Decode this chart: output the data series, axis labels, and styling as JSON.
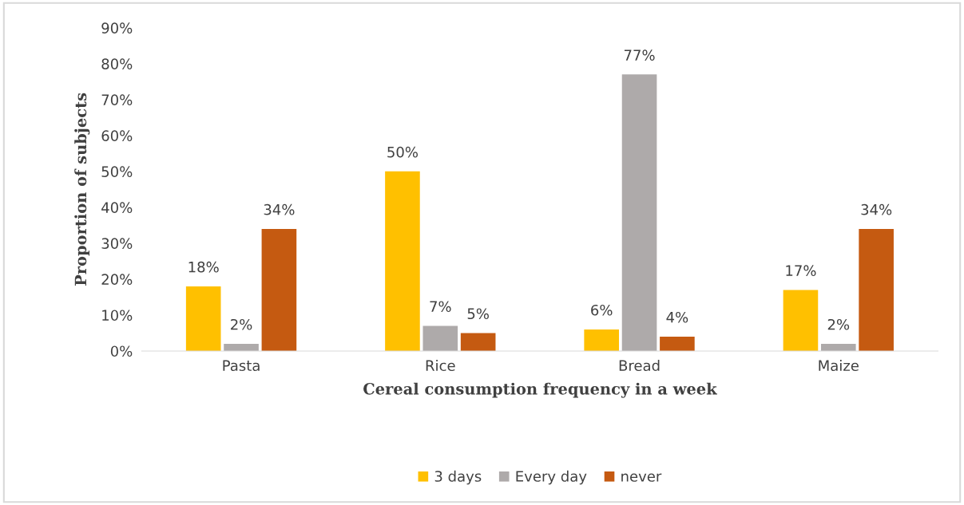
{
  "chart_data": {
    "type": "bar",
    "xlabel": "Cereal consumption frequency in a week",
    "ylabel": "Proportion of subjects",
    "categories": [
      "Pasta",
      "Rice",
      "Bread",
      "Maize"
    ],
    "series": [
      {
        "name": "3 days",
        "color": "#ffc000",
        "values": [
          18,
          50,
          6,
          17
        ],
        "value_labels": [
          "18%",
          "50%",
          "6%",
          "17%"
        ]
      },
      {
        "name": "Every day",
        "color": "#aeaaaa",
        "values": [
          2,
          7,
          77,
          2
        ],
        "value_labels": [
          "2%",
          "7%",
          "77%",
          "2%"
        ]
      },
      {
        "name": "never",
        "color": "#c55a11",
        "values": [
          34,
          5,
          4,
          34
        ],
        "value_labels": [
          "34%",
          "5%",
          "4%",
          "34%"
        ]
      }
    ],
    "ylim": [
      0,
      90
    ],
    "yticks": [
      {
        "value": 0,
        "label": "0%"
      },
      {
        "value": 10,
        "label": "10%"
      },
      {
        "value": 20,
        "label": "20%"
      },
      {
        "value": 30,
        "label": "30%"
      },
      {
        "value": 40,
        "label": "40%"
      },
      {
        "value": 50,
        "label": "50%"
      },
      {
        "value": 60,
        "label": "60%"
      },
      {
        "value": 70,
        "label": "70%"
      },
      {
        "value": 80,
        "label": "80%"
      },
      {
        "value": 90,
        "label": "90%"
      }
    ],
    "grid": false,
    "legend": "bottom"
  }
}
